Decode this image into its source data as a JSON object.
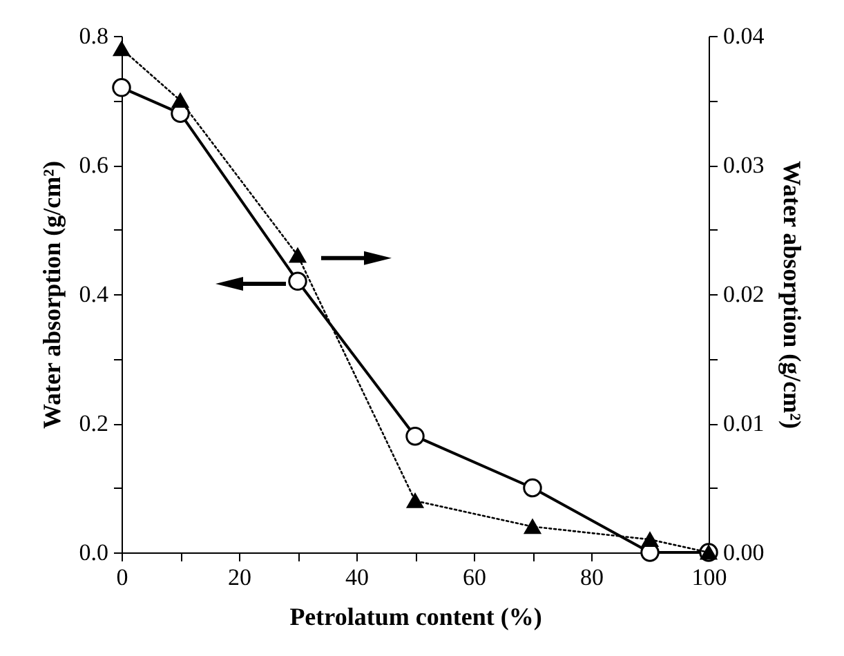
{
  "chart_data": {
    "type": "line",
    "xlabel": "Petrolatum content (%)",
    "ylabel": "Water absorption (g/cm²)",
    "y2label": "Water absorption (g/cm²)",
    "x": [
      0,
      10,
      30,
      50,
      70,
      90,
      100
    ],
    "series": [
      {
        "color": "#000000",
        "marker": "circle",
        "line_style": "solid",
        "values": [
          0.72,
          0.68,
          0.42,
          0.18,
          0.1,
          0.0,
          0.0
        ]
      },
      {
        "color": "#000000",
        "marker": "triangle",
        "line_style": "dotted",
        "axis": "y2",
        "values": [
          0.039,
          0.035,
          0.023,
          0.004,
          0.002,
          0.001,
          0.0
        ]
      }
    ],
    "xlim": [
      0,
      100
    ],
    "xticks": [
      0,
      {
        "value": 10,
        "label": null
      },
      20,
      {
        "value": 30,
        "label": null
      },
      40,
      {
        "value": 50,
        "label": null
      },
      60,
      {
        "value": 70,
        "label": null
      },
      80,
      {
        "value": 90,
        "label": null
      },
      100
    ],
    "ylim": [
      0,
      0.8
    ],
    "yticks": [
      {
        "value": 0,
        "label": "0.0"
      },
      {
        "value": 0.1,
        "label": null
      },
      0.2,
      {
        "value": 0.3,
        "label": null
      },
      0.4,
      {
        "value": 0.5,
        "label": null
      },
      0.6,
      {
        "value": 0.7,
        "label": null
      },
      0.8
    ],
    "y2lim": [
      0,
      0.04
    ],
    "y2ticks": [
      {
        "value": 0,
        "label": "0.00"
      },
      {
        "value": 0.005,
        "label": null
      },
      0.01,
      {
        "value": 0.015,
        "label": null
      },
      0.02,
      {
        "value": 0.025,
        "label": null
      },
      0.03,
      {
        "value": 0.035,
        "label": null
      },
      0.04
    ],
    "grid": false
  }
}
